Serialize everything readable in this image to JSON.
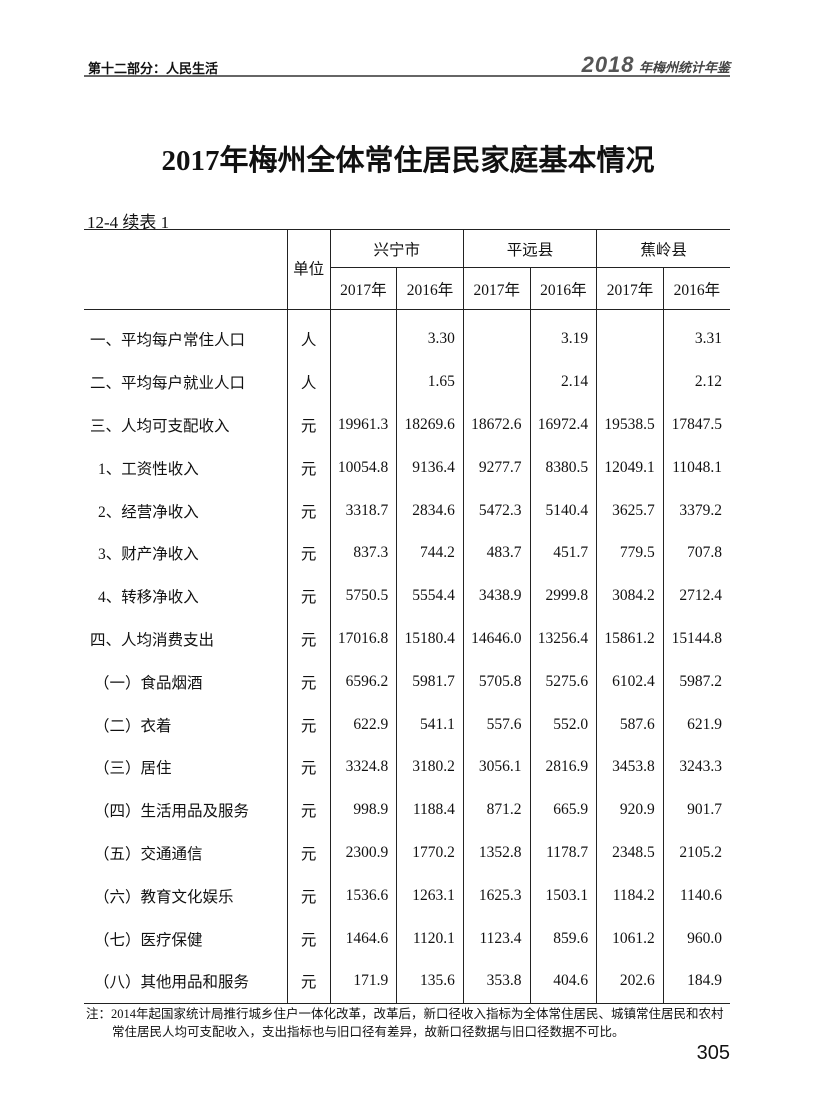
{
  "header": {
    "section": "第十二部分：人民生活",
    "book_year": "2018",
    "book_name": "年梅州统计年鉴"
  },
  "title": "2017年梅州全体常住居民家庭基本情况",
  "table_no": "12-4 续表 1",
  "table": {
    "unit_header": "单位",
    "regions": [
      "兴宁市",
      "平远县",
      "蕉岭县"
    ],
    "years": [
      "2017年",
      "2016年",
      "2017年",
      "2016年",
      "2017年",
      "2016年"
    ],
    "rows": [
      {
        "label": "一、平均每户常住人口",
        "unit": "人",
        "values": [
          "",
          "3.30",
          "",
          "3.19",
          "",
          "3.31"
        ]
      },
      {
        "label": "二、平均每户就业人口",
        "unit": "人",
        "values": [
          "",
          "1.65",
          "",
          "2.14",
          "",
          "2.12"
        ]
      },
      {
        "label": "三、人均可支配收入",
        "unit": "元",
        "values": [
          "19961.3",
          "18269.6",
          "18672.6",
          "16972.4",
          "19538.5",
          "17847.5"
        ]
      },
      {
        "label": "1、工资性收入",
        "unit": "元",
        "values": [
          "10054.8",
          "9136.4",
          "9277.7",
          "8380.5",
          "12049.1",
          "11048.1"
        ]
      },
      {
        "label": "2、经营净收入",
        "unit": "元",
        "values": [
          "3318.7",
          "2834.6",
          "5472.3",
          "5140.4",
          "3625.7",
          "3379.2"
        ]
      },
      {
        "label": "3、财产净收入",
        "unit": "元",
        "values": [
          "837.3",
          "744.2",
          "483.7",
          "451.7",
          "779.5",
          "707.8"
        ]
      },
      {
        "label": "4、转移净收入",
        "unit": "元",
        "values": [
          "5750.5",
          "5554.4",
          "3438.9",
          "2999.8",
          "3084.2",
          "2712.4"
        ]
      },
      {
        "label": "四、人均消费支出",
        "unit": "元",
        "values": [
          "17016.8",
          "15180.4",
          "14646.0",
          "13256.4",
          "15861.2",
          "15144.8"
        ]
      },
      {
        "label": "（一）食品烟酒",
        "unit": "元",
        "values": [
          "6596.2",
          "5981.7",
          "5705.8",
          "5275.6",
          "6102.4",
          "5987.2"
        ]
      },
      {
        "label": "（二）衣着",
        "unit": "元",
        "values": [
          "622.9",
          "541.1",
          "557.6",
          "552.0",
          "587.6",
          "621.9"
        ]
      },
      {
        "label": "（三）居住",
        "unit": "元",
        "values": [
          "3324.8",
          "3180.2",
          "3056.1",
          "2816.9",
          "3453.8",
          "3243.3"
        ]
      },
      {
        "label": "（四）生活用品及服务",
        "unit": "元",
        "values": [
          "998.9",
          "1188.4",
          "871.2",
          "665.9",
          "920.9",
          "901.7"
        ]
      },
      {
        "label": "（五）交通通信",
        "unit": "元",
        "values": [
          "2300.9",
          "1770.2",
          "1352.8",
          "1178.7",
          "2348.5",
          "2105.2"
        ]
      },
      {
        "label": "（六）教育文化娱乐",
        "unit": "元",
        "values": [
          "1536.6",
          "1263.1",
          "1625.3",
          "1503.1",
          "1184.2",
          "1140.6"
        ]
      },
      {
        "label": "（七）医疗保健",
        "unit": "元",
        "values": [
          "1464.6",
          "1120.1",
          "1123.4",
          "859.6",
          "1061.2",
          "960.0"
        ]
      },
      {
        "label": "（八）其他用品和服务",
        "unit": "元",
        "values": [
          "171.9",
          "135.6",
          "353.8",
          "404.6",
          "202.6",
          "184.9"
        ]
      }
    ]
  },
  "note": {
    "line1": "注：2014年起国家统计局推行城乡住户一体化改革，改革后，新口径收入指标为全体常住居民、城镇常住居民和农村",
    "line2": "常住居民人均可支配收入，支出指标也与旧口径有差异，故新口径数据与旧口径数据不可比。"
  },
  "page_number": "305"
}
